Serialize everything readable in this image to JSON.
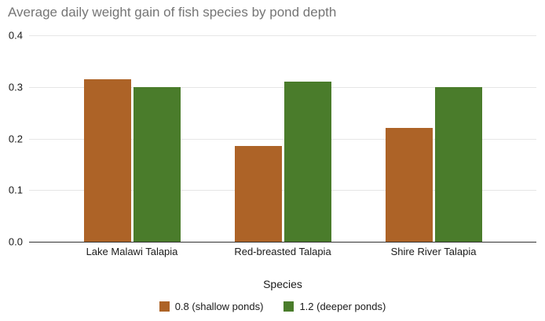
{
  "chart_data": {
    "type": "bar",
    "title": "Average daily weight gain of fish species by pond depth",
    "xlabel": "Species",
    "ylabel": "",
    "categories": [
      "Lake Malawi Talapia",
      "Red-breasted Talapia",
      "Shire River Talapia"
    ],
    "series": [
      {
        "name": "0.8 (shallow ponds)",
        "color": "#ad6327",
        "values": [
          0.315,
          0.185,
          0.22
        ]
      },
      {
        "name": "1.2 (deeper ponds)",
        "color": "#4a7c2b",
        "values": [
          0.3,
          0.31,
          0.3
        ]
      }
    ],
    "ylim": [
      0,
      0.4
    ],
    "yticks": [
      0.4,
      0.3,
      0.2,
      0.1,
      0.0
    ],
    "ytick_labels": [
      "0.4",
      "0.3",
      "0.2",
      "0.1",
      "0.0"
    ],
    "grid": true,
    "legend_position": "bottom"
  },
  "colors": {
    "title_text": "#757575",
    "axis_text": "#1a1a1a",
    "gridline": "#e6e6e6",
    "axis_line": "#333333",
    "background": "#ffffff"
  }
}
